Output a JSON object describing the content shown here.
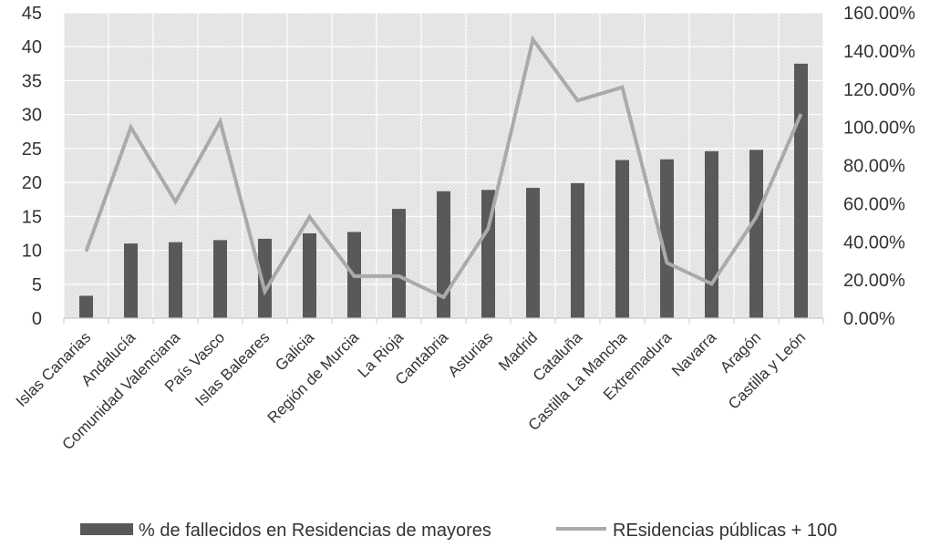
{
  "chart_data": {
    "type": "bar",
    "title": "",
    "categories": [
      "Islas Canarias",
      "Andalucía",
      "Comunidad Valenciana",
      "País Vasco",
      "Islas Baleares",
      "Galicia",
      "Región de Murcia",
      "La Rioja",
      "Cantabria",
      "Asturias",
      "Madrid",
      "Cataluña",
      "Castilla La Mancha",
      "Extremadura",
      "Navarra",
      "Aragón",
      "Castilla y León"
    ],
    "series": [
      {
        "name": "% de fallecidos en Residencias de mayores",
        "type": "bar",
        "axis": "left",
        "color": "#595959",
        "values": [
          3.3,
          11.0,
          11.2,
          11.5,
          11.7,
          12.5,
          12.7,
          16.1,
          18.7,
          18.9,
          19.2,
          19.9,
          23.3,
          23.4,
          24.6,
          24.8,
          37.5
        ]
      },
      {
        "name": "REsidencias públicas + 100",
        "type": "line",
        "axis": "right",
        "color": "#aaaaaa",
        "values": [
          0.35,
          1.0,
          0.61,
          1.03,
          0.14,
          0.53,
          0.22,
          0.22,
          0.11,
          0.47,
          1.46,
          1.14,
          1.21,
          0.29,
          0.18,
          0.53,
          1.07
        ]
      }
    ],
    "y_left": {
      "min": 0,
      "max": 45,
      "ticks": [
        "0",
        "5",
        "10",
        "15",
        "20",
        "25",
        "30",
        "35",
        "40",
        "45"
      ]
    },
    "y_right": {
      "min": 0,
      "max": 1.6,
      "ticks": [
        "0.00%",
        "20.00%",
        "40.00%",
        "60.00%",
        "80.00%",
        "100.00%",
        "120.00%",
        "140.00%",
        "160.00%"
      ]
    },
    "grid": true,
    "legend_position": "bottom"
  }
}
